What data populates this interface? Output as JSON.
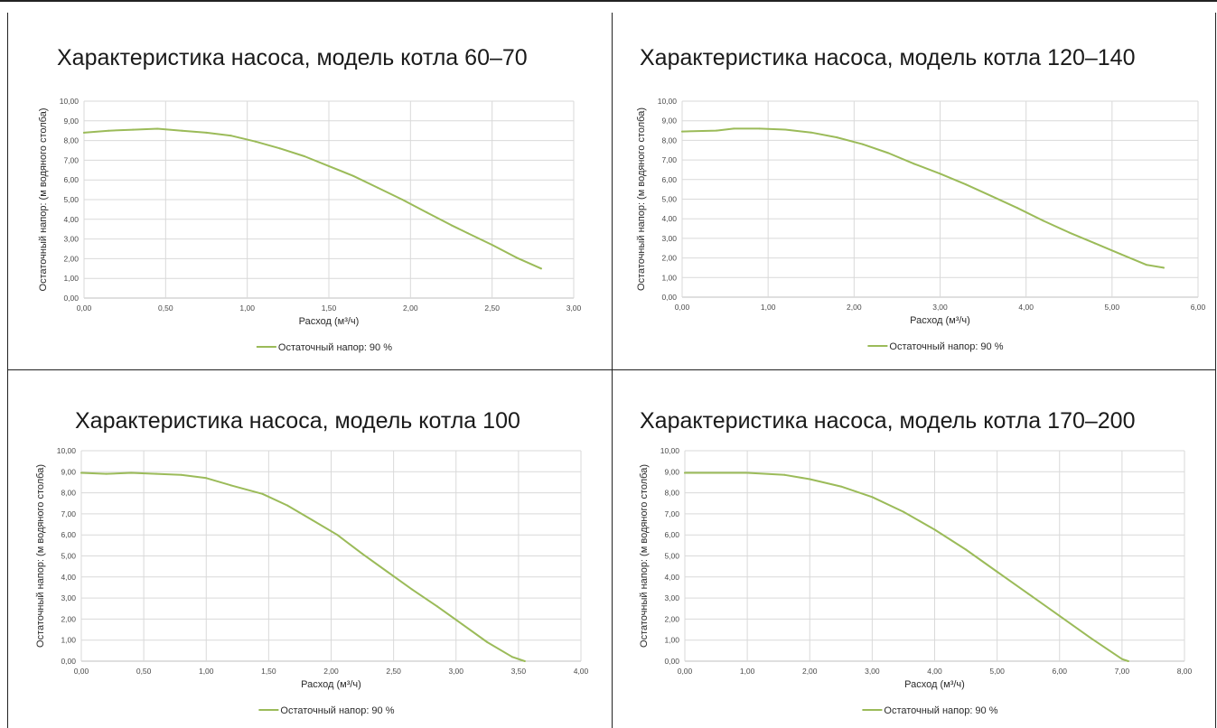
{
  "colors": {
    "series": "#9bbb59",
    "grid": "#d9d9d9",
    "axis": "#bfbfbf",
    "frame": "#222222"
  },
  "chart_data": [
    {
      "type": "line",
      "title": "Характеристика насоса, модель котла 60–70",
      "xlabel": "Расход (м³/ч)",
      "ylabel": "Остаточный напор: (м водяного столба)",
      "xlim": [
        0,
        3
      ],
      "ylim": [
        0,
        10
      ],
      "xticks": [
        "0,00",
        "0,50",
        "1,00",
        "1,50",
        "2,00",
        "2,50",
        "3,00"
      ],
      "yticks": [
        "0,00",
        "1,00",
        "2,00",
        "3,00",
        "4,00",
        "5,00",
        "6,00",
        "7,00",
        "8,00",
        "9,00",
        "10,00"
      ],
      "grid": true,
      "legend_position": "bottom",
      "series": [
        {
          "name": "Остаточный напор: 90 %",
          "x": [
            0,
            0.15,
            0.3,
            0.45,
            0.6,
            0.75,
            0.9,
            1.05,
            1.2,
            1.35,
            1.5,
            1.65,
            1.8,
            1.95,
            2.1,
            2.25,
            2.35,
            2.5,
            2.65,
            2.8
          ],
          "y": [
            8.4,
            8.5,
            8.55,
            8.6,
            8.5,
            8.4,
            8.25,
            7.95,
            7.6,
            7.2,
            6.7,
            6.2,
            5.6,
            5.0,
            4.35,
            3.7,
            3.3,
            2.7,
            2.05,
            1.5
          ]
        }
      ]
    },
    {
      "type": "line",
      "title": "Характеристика насоса, модель котла 120–140",
      "xlabel": "Расход (м³/ч)",
      "ylabel": "Остаточный напор: (м водяного столба)",
      "xlim": [
        0,
        6
      ],
      "ylim": [
        0,
        10
      ],
      "xticks": [
        "0,00",
        "1,00",
        "2,00",
        "3,00",
        "4,00",
        "5,00",
        "6,00"
      ],
      "yticks": [
        "0,00",
        "1,00",
        "2,00",
        "3,00",
        "4,00",
        "5,00",
        "6,00",
        "7,00",
        "8,00",
        "9,00",
        "10,00"
      ],
      "grid": true,
      "legend_position": "bottom",
      "series": [
        {
          "name": "Остаточный напор: 90 %",
          "x": [
            0,
            0.4,
            0.6,
            0.9,
            1.2,
            1.5,
            1.8,
            2.1,
            2.4,
            2.7,
            3.0,
            3.3,
            3.6,
            3.9,
            4.2,
            4.5,
            4.8,
            5.1,
            5.4,
            5.6
          ],
          "y": [
            8.45,
            8.5,
            8.6,
            8.6,
            8.55,
            8.4,
            8.15,
            7.8,
            7.35,
            6.8,
            6.3,
            5.75,
            5.15,
            4.55,
            3.9,
            3.3,
            2.75,
            2.2,
            1.65,
            1.5
          ]
        }
      ]
    },
    {
      "type": "line",
      "title": "Характеристика насоса, модель котла 100",
      "xlabel": "Расход (м³/ч)",
      "ylabel": "Остаточный напор: (м водяного столба)",
      "xlim": [
        0,
        4
      ],
      "ylim": [
        0,
        10
      ],
      "xticks": [
        "0,00",
        "0,50",
        "1,00",
        "1,50",
        "2,00",
        "2,50",
        "3,00",
        "3,50",
        "4,00"
      ],
      "yticks": [
        "0,00",
        "1,00",
        "2,00",
        "3,00",
        "4,00",
        "5,00",
        "6,00",
        "7,00",
        "8,00",
        "9,00",
        "10,00"
      ],
      "grid": true,
      "legend_position": "bottom",
      "series": [
        {
          "name": "Остаточный напор: 90 %",
          "x": [
            0,
            0.2,
            0.4,
            0.6,
            0.8,
            1.0,
            1.2,
            1.45,
            1.65,
            1.85,
            2.05,
            2.25,
            2.45,
            2.65,
            2.85,
            3.05,
            3.25,
            3.45,
            3.55
          ],
          "y": [
            8.95,
            8.9,
            8.95,
            8.9,
            8.85,
            8.7,
            8.35,
            7.95,
            7.4,
            6.7,
            6.0,
            5.1,
            4.25,
            3.4,
            2.6,
            1.75,
            0.9,
            0.2,
            0.0
          ]
        }
      ]
    },
    {
      "type": "line",
      "title": "Характеристика насоса, модель котла 170–200",
      "xlabel": "Расход (м³/ч)",
      "ylabel": "Остаточный напор: (м водяного столба)",
      "xlim": [
        0,
        8
      ],
      "ylim": [
        0,
        10
      ],
      "xticks": [
        "0,00",
        "1,00",
        "2,00",
        "3,00",
        "4,00",
        "5,00",
        "6,00",
        "7,00",
        "8,00"
      ],
      "yticks": [
        "0,00",
        "1,00",
        "2,00",
        "3,00",
        "4,00",
        "5,00",
        "6,00",
        "7,00",
        "8,00",
        "9,00",
        "10,00"
      ],
      "grid": true,
      "legend_position": "bottom",
      "series": [
        {
          "name": "Остаточный напор: 90 %",
          "x": [
            0,
            0.4,
            1.0,
            1.6,
            2.0,
            2.5,
            3.0,
            3.5,
            4.0,
            4.5,
            5.0,
            5.5,
            6.0,
            6.5,
            7.0,
            7.1
          ],
          "y": [
            8.95,
            8.95,
            8.95,
            8.85,
            8.65,
            8.3,
            7.8,
            7.1,
            6.25,
            5.3,
            4.25,
            3.2,
            2.15,
            1.1,
            0.1,
            0.0
          ]
        }
      ]
    }
  ]
}
